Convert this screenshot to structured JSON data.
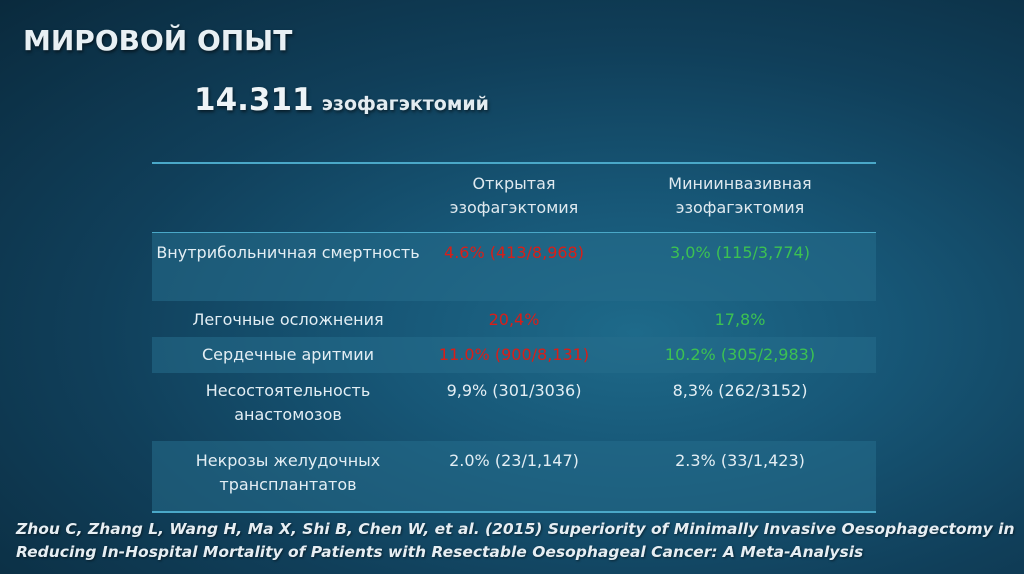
{
  "title": "МИРОВОЙ ОПЫТ",
  "subtitle": {
    "number": "14.311",
    "text": "эзофагэктомий"
  },
  "table": {
    "headers": [
      "",
      "Открытая эзофагэктомия",
      "Миниинвазивная эзофагэктомия"
    ],
    "rows": [
      {
        "label": "Внутрибольничная смертность",
        "open": "4.6% (413/8,968)",
        "mini": "3,0% (115/3,774)"
      },
      {
        "label": "Легочные осложнения",
        "open": "20,4%",
        "mini": "17,8%"
      },
      {
        "label": "Сердечные аритмии",
        "open": "11.0% (900/8,131)",
        "mini": "10.2% (305/2,983)"
      },
      {
        "label": "Несостоятельность анастомозов",
        "open": "9,9% (301/3036)",
        "mini": "8,3% (262/3152)"
      },
      {
        "label": "Некрозы желудочных трансплантатов",
        "open": "2.0% (23/1,147)",
        "mini": "2.3% (33/1,423)"
      }
    ]
  },
  "colors": {
    "open_highlight": "#d91e18",
    "mini_highlight": "#3cc152",
    "table_rule": "#4aa8c8"
  },
  "citation": "Zhou C, Zhang L, Wang H, Ma X, Shi B, Chen W, et al. (2015) Superiority of Minimally Invasive Oesophagectomy in Reducing In-Hospital Mortality of Patients with Resectable Oesophageal Cancer: A Meta-Analysis"
}
